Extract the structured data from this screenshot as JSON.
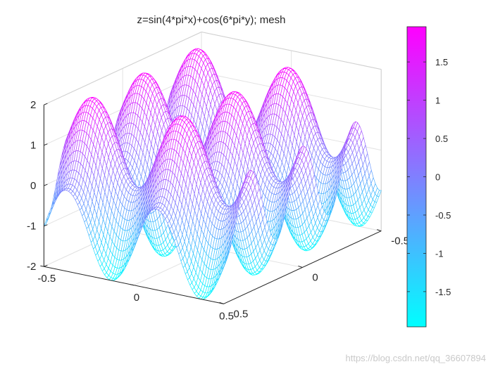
{
  "chart_data": {
    "type": "surface-mesh",
    "title": "z=sin(4*pi*x)+cos(6*pi*y); mesh",
    "function": "z=sin(4*pi*x)+cos(6*pi*y)",
    "xlim": [
      -0.5,
      0.5
    ],
    "ylim": [
      -0.5,
      0.5
    ],
    "zlim": [
      -2,
      2
    ],
    "x_ticks": [
      "-0.5",
      "0",
      "0.5"
    ],
    "y_ticks": [
      "-0.5",
      "0",
      "0.5"
    ],
    "z_ticks": [
      "-2",
      "-1",
      "0",
      "1",
      "2"
    ],
    "grid": true,
    "colormap": "cool",
    "colormap_colors": [
      "#00ffff",
      "#ff00ff"
    ],
    "colorbar": {
      "range": [
        -1.96,
        1.96
      ],
      "ticks": [
        "-1.5",
        "-1",
        "-0.5",
        "0",
        "0.5",
        "1",
        "1.5"
      ],
      "tick_values": [
        -1.5,
        -1,
        -0.5,
        0,
        0.5,
        1,
        1.5
      ],
      "location": "right"
    }
  },
  "watermark": "https://blog.csdn.net/qq_36607894"
}
